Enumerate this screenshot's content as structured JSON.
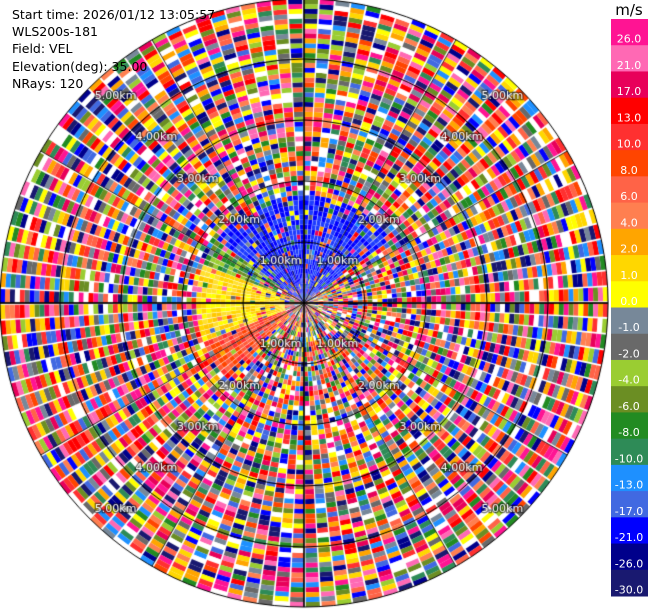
{
  "info": {
    "start_time": "Start time: 2026/01/12 13:05:57",
    "instrument": "WLS200s-181",
    "field": "Field: VEL",
    "elevation": "Elevation(deg): 35.00",
    "nrays": "NRays: 120"
  },
  "range_labels": [
    "1.00km",
    "2.00km",
    "3.00km",
    "4.00km",
    "5.00km"
  ],
  "colorbar": {
    "unit": "m/s",
    "ticks": [
      "26.0",
      "21.0",
      "17.0",
      "13.0",
      "10.0",
      "8.0",
      "6.0",
      "4.0",
      "2.0",
      "1.0",
      "0.0",
      "-1.0",
      "-2.0",
      "-4.0",
      "-6.0",
      "-8.0",
      "-10.0",
      "-13.0",
      "-17.0",
      "-21.0",
      "-26.0",
      "-30.0"
    ],
    "colors": [
      "#ff1493",
      "#ff69b4",
      "#e8005a",
      "#ff0000",
      "#ff3030",
      "#ff4500",
      "#ff6347",
      "#ff7f50",
      "#ffa500",
      "#ffd700",
      "#ffff00",
      "#778899",
      "#696969",
      "#9acd32",
      "#6b8e23",
      "#228b22",
      "#2e8b57",
      "#1e90ff",
      "#4169e1",
      "#0000ff",
      "#00008b",
      "#191970"
    ]
  }
}
